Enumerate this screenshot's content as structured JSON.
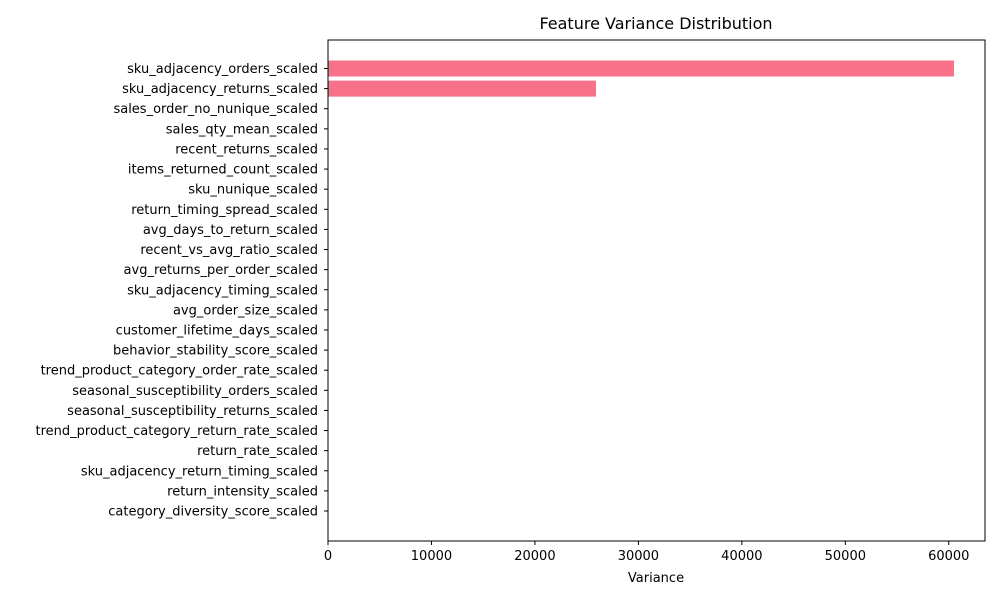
{
  "chart_data": {
    "type": "bar",
    "orientation": "horizontal",
    "title": "Feature Variance Distribution",
    "xlabel": "Variance",
    "ylabel": "",
    "xlim": [
      0,
      63500
    ],
    "xticks": [
      0,
      10000,
      20000,
      30000,
      40000,
      50000,
      60000
    ],
    "grid": false,
    "bar_color": "#f77189",
    "categories": [
      "sku_adjacency_orders_scaled",
      "sku_adjacency_returns_scaled",
      "sales_order_no_nunique_scaled",
      "sales_qty_mean_scaled",
      "recent_returns_scaled",
      "items_returned_count_scaled",
      "sku_nunique_scaled",
      "return_timing_spread_scaled",
      "avg_days_to_return_scaled",
      "recent_vs_avg_ratio_scaled",
      "avg_returns_per_order_scaled",
      "sku_adjacency_timing_scaled",
      "avg_order_size_scaled",
      "customer_lifetime_days_scaled",
      "behavior_stability_score_scaled",
      "trend_product_category_order_rate_scaled",
      "seasonal_susceptibility_orders_scaled",
      "seasonal_susceptibility_returns_scaled",
      "trend_product_category_return_rate_scaled",
      "return_rate_scaled",
      "sku_adjacency_return_timing_scaled",
      "return_intensity_scaled",
      "category_diversity_score_scaled"
    ],
    "values": [
      60500,
      25900,
      0,
      0,
      0,
      0,
      0,
      0,
      0,
      0,
      0,
      0,
      0,
      0,
      0,
      0,
      0,
      0,
      0,
      0,
      0,
      0,
      0
    ]
  }
}
